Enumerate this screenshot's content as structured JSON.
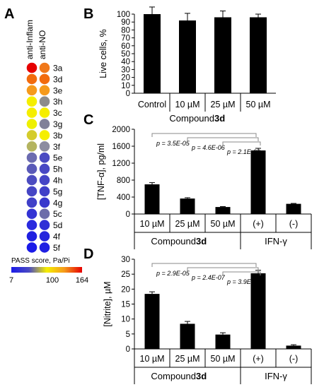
{
  "panels": {
    "A": "A",
    "B": "B",
    "C": "C",
    "D": "D"
  },
  "panel_a": {
    "column_labels": [
      "anti-Inflam",
      "anti-NO"
    ],
    "compounds": [
      "3a",
      "3d",
      "3e",
      "3h",
      "3c",
      "3g",
      "3b",
      "3f",
      "5e",
      "5h",
      "4h",
      "5g",
      "4g",
      "5c",
      "5d",
      "4f",
      "5f"
    ],
    "anti_inflam_colors": [
      "#e60000",
      "#f26b0d",
      "#f59a1c",
      "#f5ee00",
      "#f5ee00",
      "#eef000",
      "#d4cc2c",
      "#b4b460",
      "#6b6bb0",
      "#5a5ab8",
      "#4c4cc0",
      "#4545c4",
      "#4040c8",
      "#3333d4",
      "#2a2ade",
      "#1f1fe0",
      "#1a1ae8"
    ],
    "anti_no_colors": [
      "#f0781a",
      "#f26b0d",
      "#f59a1c",
      "#8c8c8c",
      "#f5ee00",
      "#808099",
      "#f5ee00",
      "#8c8ca0",
      "#4a4ac2",
      "#4848c4",
      "#4545c6",
      "#4040c8",
      "#3838cc",
      "#6d6daa",
      "#3030d6",
      "#2525dc",
      "#2020e2"
    ],
    "legend": {
      "title": "PASS score, Pa/Pi",
      "min": "7",
      "mid": "100",
      "max": "164",
      "colors": [
        "#1a1ae8",
        "#4a4ac2",
        "#f5ee00",
        "#f59a1c",
        "#e60000"
      ]
    }
  },
  "chart_data": [
    {
      "panel": "B",
      "type": "bar",
      "categories": [
        "Control",
        "10 µM",
        "25 µM",
        "50 µM"
      ],
      "values": [
        100,
        92,
        96,
        96
      ],
      "errors": [
        9,
        9,
        8,
        4
      ],
      "ylabel": "Live cells, %",
      "ylim": [
        0,
        100
      ],
      "yticks": [
        "0",
        "10",
        "20",
        "30",
        "40",
        "50",
        "60",
        "70",
        "80",
        "90",
        "100"
      ],
      "group_label": {
        "prefix": "Compound ",
        "bold": "3d"
      }
    },
    {
      "panel": "C",
      "type": "bar",
      "categories": [
        "10 µM",
        "25 µM",
        "50 µM",
        "(+)",
        "(-)"
      ],
      "values": [
        700,
        365,
        165,
        1500,
        240
      ],
      "errors": [
        40,
        20,
        10,
        50,
        10
      ],
      "ylabel": "[TNF-α], pg/ml",
      "ylim": [
        0,
        2000
      ],
      "yticks": [
        "0",
        "400",
        "800",
        "1200",
        "1600",
        "2000"
      ],
      "group_labels": [
        {
          "prefix": "Compound ",
          "bold": "3d"
        },
        {
          "prefix": "IFN-γ",
          "bold": ""
        }
      ],
      "p_values": [
        "p = 3.5E-05",
        "p = 4.6E-06",
        "p = 2.1E-06"
      ]
    },
    {
      "panel": "D",
      "type": "bar",
      "categories": [
        "10 µM",
        "25 µM",
        "50 µM",
        "(+)",
        "(-)"
      ],
      "values": [
        18.4,
        8.4,
        4.8,
        25.3,
        1.1
      ],
      "errors": [
        0.7,
        0.8,
        0.6,
        1.0,
        0.3
      ],
      "ylabel": "[Nitrite], µM",
      "ylim": [
        0,
        30
      ],
      "yticks": [
        "0",
        "5",
        "10",
        "15",
        "20",
        "25",
        "30"
      ],
      "group_labels": [
        {
          "prefix": "Compound ",
          "bold": "3d"
        },
        {
          "prefix": "IFN-γ",
          "bold": ""
        }
      ],
      "p_values": [
        "p = 2.9E-05",
        "p = 2.4E-07",
        "p = 3.9E-08"
      ]
    }
  ]
}
